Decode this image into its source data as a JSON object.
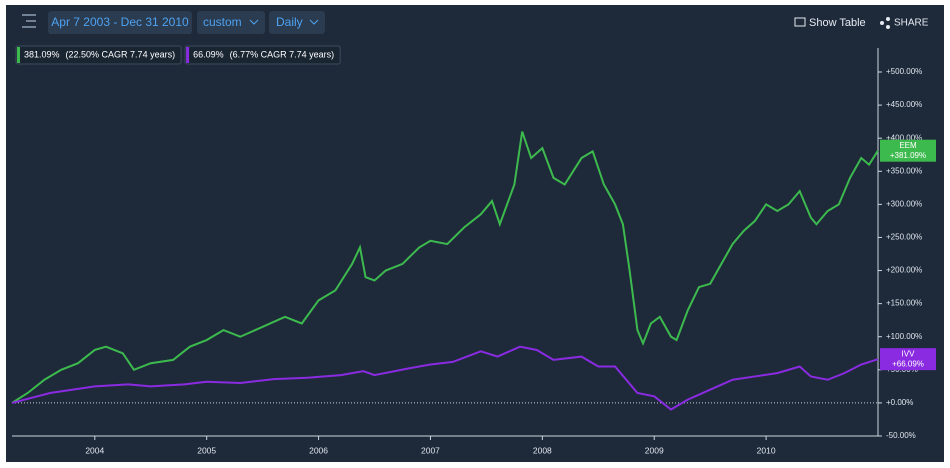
{
  "toolbar": {
    "date_range": "Apr 7 2003 - Dec 31 2010",
    "range_mode": "custom",
    "frequency": "Daily",
    "show_table": "Show Table",
    "share": "SHARE"
  },
  "chart_data": {
    "type": "line",
    "xlim": [
      2003.26,
      2011.0
    ],
    "xticks": [
      2004,
      2005,
      2006,
      2007,
      2008,
      2009,
      2010
    ],
    "ylim": [
      -50,
      500
    ],
    "yticks": [
      {
        "value": -50,
        "label": "-50.00%"
      },
      {
        "value": 0,
        "label": "+0.00%"
      },
      {
        "value": 50,
        "label": "+50.00%"
      },
      {
        "value": 100,
        "label": "+100.00%"
      },
      {
        "value": 150,
        "label": "+150.00%"
      },
      {
        "value": 200,
        "label": "+200.00%"
      },
      {
        "value": 250,
        "label": "+250.00%"
      },
      {
        "value": 300,
        "label": "+300.00%"
      },
      {
        "value": 350,
        "label": "+350.00%"
      },
      {
        "value": 400,
        "label": "+400.00%"
      },
      {
        "value": 450,
        "label": "+450.00%"
      },
      {
        "value": 500,
        "label": "+500.00%"
      }
    ],
    "series": [
      {
        "name": "EEM",
        "color": "#3dba4e",
        "total_return": "381.09%",
        "cagr_note": "(22.50% CAGR 7.74 years)",
        "end_label": "+381.09%",
        "x": [
          2003.26,
          2003.4,
          2003.55,
          2003.7,
          2003.85,
          2004.0,
          2004.1,
          2004.25,
          2004.35,
          2004.5,
          2004.7,
          2004.85,
          2005.0,
          2005.15,
          2005.3,
          2005.5,
          2005.7,
          2005.85,
          2006.0,
          2006.15,
          2006.3,
          2006.37,
          2006.42,
          2006.5,
          2006.6,
          2006.75,
          2006.9,
          2007.0,
          2007.15,
          2007.3,
          2007.45,
          2007.55,
          2007.62,
          2007.75,
          2007.82,
          2007.9,
          2008.0,
          2008.1,
          2008.2,
          2008.35,
          2008.45,
          2008.55,
          2008.65,
          2008.72,
          2008.78,
          2008.85,
          2008.9,
          2008.97,
          2009.05,
          2009.15,
          2009.2,
          2009.3,
          2009.4,
          2009.5,
          2009.6,
          2009.7,
          2009.8,
          2009.9,
          2010.0,
          2010.1,
          2010.2,
          2010.3,
          2010.4,
          2010.45,
          2010.55,
          2010.65,
          2010.75,
          2010.85,
          2010.92,
          2011.0
        ],
        "values": [
          0,
          15,
          35,
          50,
          60,
          80,
          85,
          75,
          50,
          60,
          65,
          85,
          95,
          110,
          100,
          115,
          130,
          120,
          155,
          170,
          210,
          235,
          190,
          185,
          200,
          210,
          235,
          245,
          240,
          265,
          285,
          305,
          270,
          330,
          410,
          370,
          385,
          340,
          330,
          370,
          380,
          330,
          300,
          270,
          200,
          110,
          90,
          120,
          130,
          100,
          95,
          140,
          175,
          180,
          210,
          240,
          260,
          275,
          300,
          290,
          300,
          320,
          280,
          270,
          290,
          300,
          340,
          370,
          360,
          381.09
        ]
      },
      {
        "name": "IVV",
        "color": "#8a2be2",
        "total_return": "66.09%",
        "cagr_note": "(6.77% CAGR 7.74 years)",
        "end_label": "+66.09%",
        "x": [
          2003.26,
          2003.6,
          2004.0,
          2004.3,
          2004.5,
          2004.8,
          2005.0,
          2005.3,
          2005.6,
          2005.9,
          2006.2,
          2006.4,
          2006.5,
          2006.8,
          2007.0,
          2007.2,
          2007.45,
          2007.6,
          2007.8,
          2007.95,
          2008.1,
          2008.35,
          2008.5,
          2008.65,
          2008.75,
          2008.85,
          2009.0,
          2009.15,
          2009.3,
          2009.5,
          2009.7,
          2009.9,
          2010.1,
          2010.3,
          2010.4,
          2010.55,
          2010.7,
          2010.85,
          2011.0
        ],
        "values": [
          0,
          15,
          25,
          28,
          25,
          28,
          32,
          30,
          36,
          38,
          42,
          48,
          42,
          52,
          58,
          62,
          78,
          70,
          85,
          80,
          65,
          70,
          55,
          55,
          35,
          15,
          10,
          -10,
          5,
          20,
          35,
          40,
          45,
          55,
          40,
          35,
          45,
          58,
          66.09
        ]
      }
    ]
  }
}
